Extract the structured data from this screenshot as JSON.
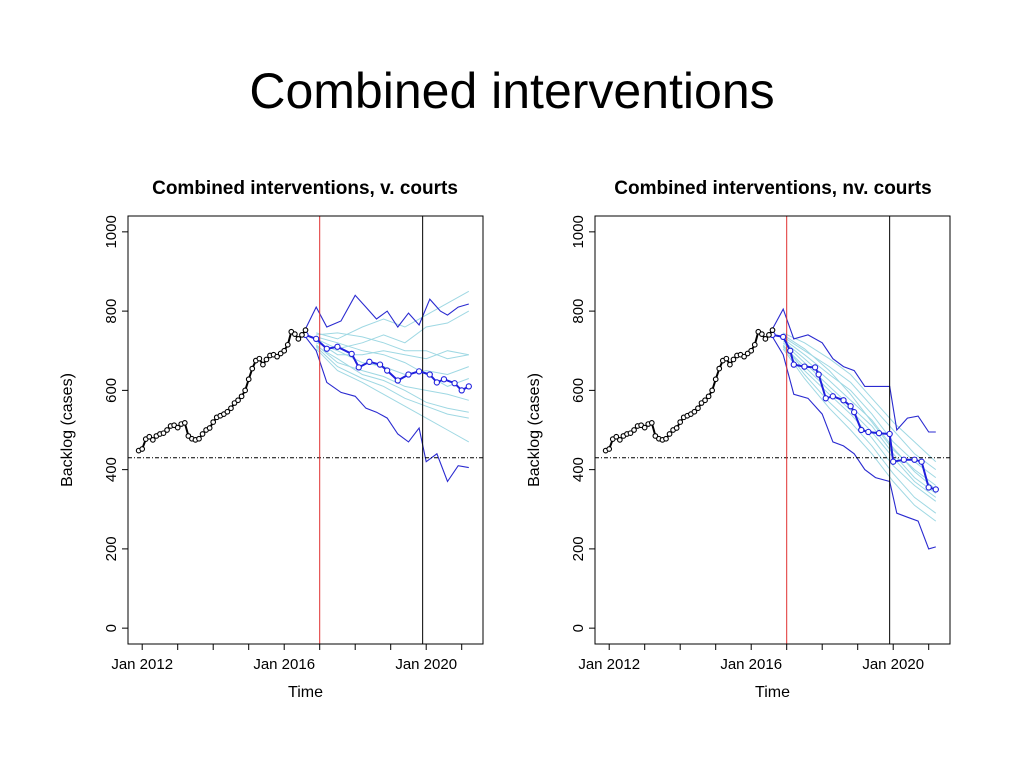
{
  "slide": {
    "title": "Combined interventions"
  },
  "chart_data": [
    {
      "type": "line",
      "title": "Combined interventions, v. courts",
      "xlabel": "Time",
      "ylabel": "Backlog (cases)",
      "xticks": [
        "Jan 2012",
        "Jan 2016",
        "Jan 2020"
      ],
      "xtick_years": [
        2012,
        2016,
        2020
      ],
      "xlim": [
        2011.6,
        2021.6
      ],
      "yticks": [
        0,
        200,
        400,
        600,
        800,
        1000
      ],
      "ylim": [
        -40,
        1040
      ],
      "reference_lines": {
        "horizontal_target": 430,
        "intervention_start": 2017.0,
        "period_marker": 2019.9
      },
      "colors": {
        "observed": "#000000",
        "median": "#2020dd",
        "bounds": "#2a2ad0",
        "simulations": "#9fd8e3",
        "intervention": "#e03030",
        "marker": "#000000"
      },
      "observed": {
        "x": [
          2011.9,
          2012.0,
          2012.1,
          2012.2,
          2012.3,
          2012.4,
          2012.5,
          2012.6,
          2012.7,
          2012.8,
          2012.9,
          2013.0,
          2013.1,
          2013.2,
          2013.3,
          2013.4,
          2013.5,
          2013.6,
          2013.7,
          2013.8,
          2013.9,
          2014.0,
          2014.1,
          2014.2,
          2014.3,
          2014.4,
          2014.5,
          2014.6,
          2014.7,
          2014.8,
          2014.9,
          2015.0,
          2015.1,
          2015.2,
          2015.3,
          2015.4,
          2015.5,
          2015.6,
          2015.7,
          2015.8,
          2015.9,
          2016.0,
          2016.1,
          2016.2,
          2016.3,
          2016.4,
          2016.5,
          2016.6
        ],
        "values": [
          448,
          452,
          477,
          483,
          475,
          485,
          490,
          492,
          500,
          510,
          512,
          506,
          515,
          518,
          485,
          478,
          475,
          478,
          490,
          500,
          505,
          520,
          532,
          536,
          540,
          546,
          555,
          568,
          575,
          585,
          600,
          628,
          655,
          675,
          680,
          665,
          678,
          688,
          690,
          685,
          693,
          700,
          715,
          748,
          742,
          730,
          740,
          752
        ]
      },
      "median": {
        "x": [
          2016.6,
          2016.9,
          2017.2,
          2017.5,
          2017.9,
          2018.1,
          2018.4,
          2018.7,
          2018.9,
          2019.2,
          2019.5,
          2019.8,
          2020.1,
          2020.3,
          2020.5,
          2020.8,
          2021.0,
          2021.2
        ],
        "values": [
          740,
          730,
          705,
          710,
          692,
          658,
          672,
          665,
          650,
          625,
          640,
          648,
          640,
          620,
          628,
          618,
          600,
          610
        ]
      },
      "upper_bound": {
        "x": [
          2016.6,
          2016.9,
          2017.2,
          2017.6,
          2018.0,
          2018.3,
          2018.6,
          2018.9,
          2019.2,
          2019.5,
          2019.8,
          2020.1,
          2020.4,
          2020.6,
          2020.9,
          2021.2
        ],
        "values": [
          755,
          810,
          760,
          775,
          840,
          810,
          780,
          800,
          760,
          795,
          765,
          830,
          800,
          790,
          810,
          818
        ]
      },
      "lower_bound": {
        "x": [
          2016.6,
          2016.9,
          2017.2,
          2017.6,
          2018.0,
          2018.3,
          2018.6,
          2018.9,
          2019.2,
          2019.5,
          2019.8,
          2020.0,
          2020.3,
          2020.6,
          2020.9,
          2021.2
        ],
        "values": [
          735,
          700,
          620,
          595,
          585,
          555,
          545,
          530,
          490,
          470,
          505,
          420,
          440,
          370,
          410,
          405
        ]
      },
      "simulations": [
        {
          "x": [
            2016.9,
            2017.5,
            2018.2,
            2018.8,
            2019.4,
            2020.0,
            2020.6,
            2021.2
          ],
          "values": [
            745,
            730,
            760,
            780,
            760,
            790,
            820,
            850
          ]
        },
        {
          "x": [
            2016.9,
            2017.5,
            2018.2,
            2018.8,
            2019.4,
            2020.0,
            2020.6,
            2021.2
          ],
          "values": [
            730,
            705,
            720,
            740,
            720,
            760,
            770,
            800
          ]
        },
        {
          "x": [
            2016.9,
            2017.5,
            2018.2,
            2018.8,
            2019.4,
            2020.0,
            2020.6,
            2021.2
          ],
          "values": [
            725,
            690,
            690,
            700,
            690,
            680,
            700,
            690
          ]
        },
        {
          "x": [
            2016.9,
            2017.5,
            2018.2,
            2018.8,
            2019.4,
            2020.0,
            2020.6,
            2021.2
          ],
          "values": [
            720,
            700,
            670,
            660,
            640,
            650,
            640,
            660
          ]
        },
        {
          "x": [
            2016.9,
            2017.5,
            2018.2,
            2018.8,
            2019.4,
            2020.0,
            2020.6,
            2021.2
          ],
          "values": [
            715,
            670,
            650,
            635,
            610,
            600,
            590,
            575
          ]
        },
        {
          "x": [
            2016.9,
            2017.5,
            2018.2,
            2018.8,
            2019.4,
            2020.0,
            2020.6,
            2021.2
          ],
          "values": [
            710,
            660,
            630,
            610,
            580,
            560,
            540,
            530
          ]
        },
        {
          "x": [
            2016.9,
            2017.5,
            2018.2,
            2018.8,
            2019.4,
            2020.0,
            2020.6,
            2021.2
          ],
          "values": [
            705,
            650,
            620,
            590,
            560,
            530,
            500,
            470
          ]
        },
        {
          "x": [
            2016.9,
            2017.5,
            2018.2,
            2018.8,
            2019.4,
            2020.0,
            2020.6,
            2021.2
          ],
          "values": [
            735,
            720,
            700,
            690,
            670,
            640,
            610,
            630
          ]
        },
        {
          "x": [
            2016.9,
            2017.5,
            2018.2,
            2018.8,
            2019.4,
            2020.0,
            2020.6,
            2021.2
          ],
          "values": [
            740,
            745,
            735,
            720,
            700,
            700,
            680,
            690
          ]
        },
        {
          "x": [
            2016.9,
            2017.5,
            2018.2,
            2018.8,
            2019.4,
            2020.0,
            2020.6,
            2021.2
          ],
          "values": [
            712,
            680,
            640,
            625,
            600,
            570,
            555,
            545
          ]
        }
      ]
    },
    {
      "type": "line",
      "title": "Combined interventions, nv. courts",
      "xlabel": "Time",
      "ylabel": "Backlog (cases)",
      "xticks": [
        "Jan 2012",
        "Jan 2016",
        "Jan 2020"
      ],
      "xtick_years": [
        2012,
        2016,
        2020
      ],
      "xlim": [
        2011.6,
        2021.6
      ],
      "yticks": [
        0,
        200,
        400,
        600,
        800,
        1000
      ],
      "ylim": [
        -40,
        1040
      ],
      "reference_lines": {
        "horizontal_target": 430,
        "intervention_start": 2017.0,
        "period_marker": 2019.9
      },
      "colors": {
        "observed": "#000000",
        "median": "#2020dd",
        "bounds": "#2a2ad0",
        "simulations": "#9fd8e3",
        "intervention": "#e03030",
        "marker": "#000000"
      },
      "observed": {
        "x": [
          2011.9,
          2012.0,
          2012.1,
          2012.2,
          2012.3,
          2012.4,
          2012.5,
          2012.6,
          2012.7,
          2012.8,
          2012.9,
          2013.0,
          2013.1,
          2013.2,
          2013.3,
          2013.4,
          2013.5,
          2013.6,
          2013.7,
          2013.8,
          2013.9,
          2014.0,
          2014.1,
          2014.2,
          2014.3,
          2014.4,
          2014.5,
          2014.6,
          2014.7,
          2014.8,
          2014.9,
          2015.0,
          2015.1,
          2015.2,
          2015.3,
          2015.4,
          2015.5,
          2015.6,
          2015.7,
          2015.8,
          2015.9,
          2016.0,
          2016.1,
          2016.2,
          2016.3,
          2016.4,
          2016.5,
          2016.6
        ],
        "values": [
          448,
          452,
          477,
          483,
          475,
          485,
          490,
          492,
          500,
          510,
          512,
          506,
          515,
          518,
          485,
          478,
          475,
          478,
          490,
          500,
          505,
          520,
          532,
          536,
          540,
          546,
          555,
          568,
          575,
          585,
          600,
          628,
          655,
          675,
          680,
          665,
          678,
          688,
          690,
          685,
          693,
          700,
          715,
          748,
          742,
          730,
          740,
          752
        ]
      },
      "median": {
        "x": [
          2016.6,
          2016.9,
          2017.1,
          2017.2,
          2017.5,
          2017.8,
          2017.9,
          2018.1,
          2018.3,
          2018.6,
          2018.8,
          2018.9,
          2019.1,
          2019.3,
          2019.6,
          2019.9,
          2020.0,
          2020.3,
          2020.6,
          2020.8,
          2021.0,
          2021.2
        ],
        "values": [
          740,
          735,
          700,
          665,
          660,
          658,
          640,
          580,
          585,
          575,
          560,
          545,
          500,
          495,
          492,
          490,
          420,
          425,
          425,
          420,
          355,
          350
        ]
      },
      "upper_bound": {
        "x": [
          2016.6,
          2016.9,
          2017.2,
          2017.6,
          2018.0,
          2018.3,
          2018.6,
          2018.9,
          2019.2,
          2019.5,
          2019.9,
          2020.1,
          2020.4,
          2020.7,
          2021.0,
          2021.2
        ],
        "values": [
          755,
          805,
          730,
          740,
          720,
          680,
          660,
          650,
          610,
          610,
          610,
          500,
          530,
          535,
          495,
          495
        ]
      },
      "lower_bound": {
        "x": [
          2016.6,
          2016.9,
          2017.2,
          2017.6,
          2018.0,
          2018.3,
          2018.6,
          2018.9,
          2019.2,
          2019.5,
          2019.9,
          2020.1,
          2020.4,
          2020.7,
          2021.0,
          2021.2
        ],
        "values": [
          735,
          690,
          590,
          580,
          540,
          470,
          460,
          440,
          400,
          380,
          370,
          290,
          280,
          270,
          200,
          205
        ]
      },
      "simulations": [
        {
          "x": [
            2016.9,
            2017.5,
            2018.2,
            2018.8,
            2019.4,
            2020.0,
            2020.6,
            2021.2
          ],
          "values": [
            745,
            720,
            680,
            640,
            580,
            520,
            470,
            420
          ]
        },
        {
          "x": [
            2016.9,
            2017.5,
            2018.2,
            2018.8,
            2019.4,
            2020.0,
            2020.6,
            2021.2
          ],
          "values": [
            730,
            690,
            640,
            600,
            540,
            470,
            420,
            380
          ]
        },
        {
          "x": [
            2016.9,
            2017.5,
            2018.2,
            2018.8,
            2019.4,
            2020.0,
            2020.6,
            2021.2
          ],
          "values": [
            720,
            670,
            610,
            560,
            510,
            440,
            380,
            340
          ]
        },
        {
          "x": [
            2016.9,
            2017.5,
            2018.2,
            2018.8,
            2019.4,
            2020.0,
            2020.6,
            2021.2
          ],
          "values": [
            715,
            650,
            590,
            540,
            480,
            410,
            360,
            320
          ]
        },
        {
          "x": [
            2016.9,
            2017.5,
            2018.2,
            2018.8,
            2019.4,
            2020.0,
            2020.6,
            2021.2
          ],
          "values": [
            710,
            640,
            570,
            520,
            460,
            390,
            330,
            290
          ]
        },
        {
          "x": [
            2016.9,
            2017.5,
            2018.2,
            2018.8,
            2019.4,
            2020.0,
            2020.6,
            2021.2
          ],
          "values": [
            705,
            630,
            555,
            500,
            440,
            370,
            310,
            270
          ]
        },
        {
          "x": [
            2016.9,
            2017.5,
            2018.2,
            2018.8,
            2019.4,
            2020.0,
            2020.6,
            2021.2
          ],
          "values": [
            735,
            700,
            660,
            620,
            560,
            500,
            440,
            400
          ]
        },
        {
          "x": [
            2016.9,
            2017.5,
            2018.2,
            2018.8,
            2019.4,
            2020.0,
            2020.6,
            2021.2
          ],
          "values": [
            740,
            705,
            650,
            590,
            520,
            450,
            400,
            360
          ]
        },
        {
          "x": [
            2016.9,
            2017.5,
            2018.2,
            2018.8,
            2019.4,
            2020.0,
            2020.6,
            2021.2
          ],
          "values": [
            712,
            660,
            600,
            550,
            495,
            430,
            370,
            330
          ]
        },
        {
          "x": [
            2016.9,
            2017.5,
            2018.2,
            2018.8,
            2019.4,
            2020.0,
            2020.6,
            2021.2
          ],
          "values": [
            725,
            680,
            625,
            575,
            525,
            455,
            395,
            350
          ]
        }
      ]
    }
  ]
}
